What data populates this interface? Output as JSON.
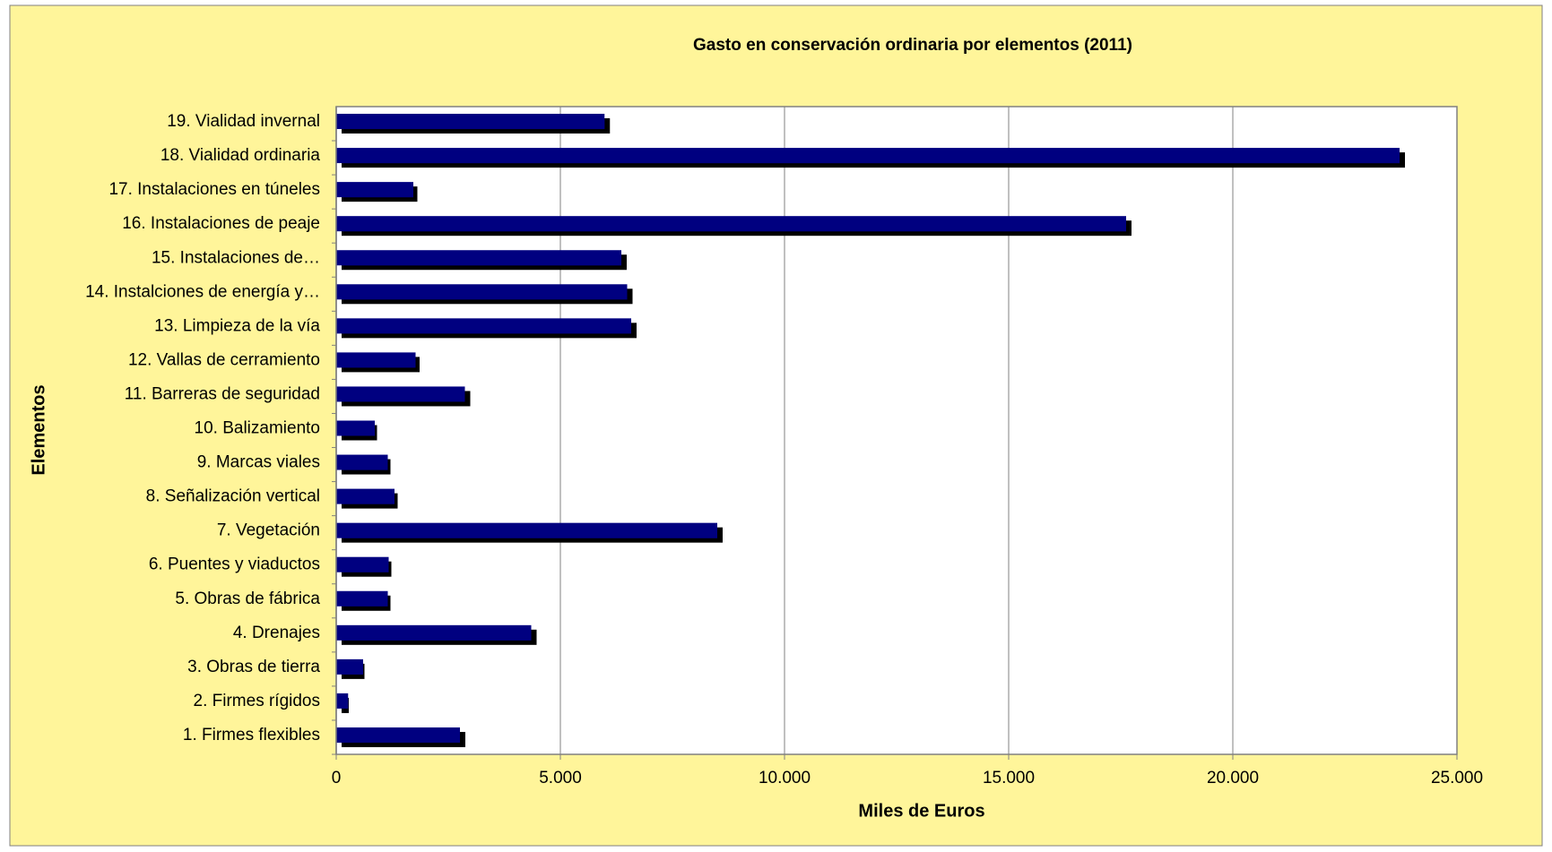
{
  "chart_data": {
    "type": "bar",
    "orientation": "horizontal",
    "title": "Gasto en conservación ordinaria por elementos (2011)",
    "x_label": "Miles de Euros",
    "y_label": "Elementos",
    "categories": [
      "1. Firmes flexibles",
      "2. Firmes rígidos",
      "3. Obras de tierra",
      "4. Drenajes",
      "5. Obras de fábrica",
      "6. Puentes y viaductos",
      "7. Vegetación",
      "8. Señalización vertical",
      "9. Marcas viales",
      "10. Balizamiento",
      "11. Barreras de seguridad",
      "12. Vallas de cerramiento",
      "13. Limpieza de la vía",
      "14. Instalciones de energía y…",
      "15. Instalaciones de…",
      "16. Instalaciones de peaje",
      "17. Instalaciones en túneles",
      "18. Vialidad ordinaria",
      "19. Vialidad invernal"
    ],
    "values": [
      2760,
      265,
      600,
      4350,
      1150,
      1170,
      8500,
      1300,
      1150,
      860,
      2870,
      1770,
      6580,
      6490,
      6360,
      17620,
      1720,
      23720,
      5985
    ],
    "color": "#000080",
    "xlim": [
      0,
      25000
    ],
    "xticks": [
      0,
      {
        "value": 5000,
        "label": "5.000"
      },
      {
        "value": 10000,
        "label": "10.000"
      },
      {
        "value": 15000,
        "label": "15.000"
      },
      {
        "value": 20000,
        "label": "20.000"
      },
      {
        "value": 25000,
        "label": "25.000"
      }
    ],
    "grid": true
  }
}
